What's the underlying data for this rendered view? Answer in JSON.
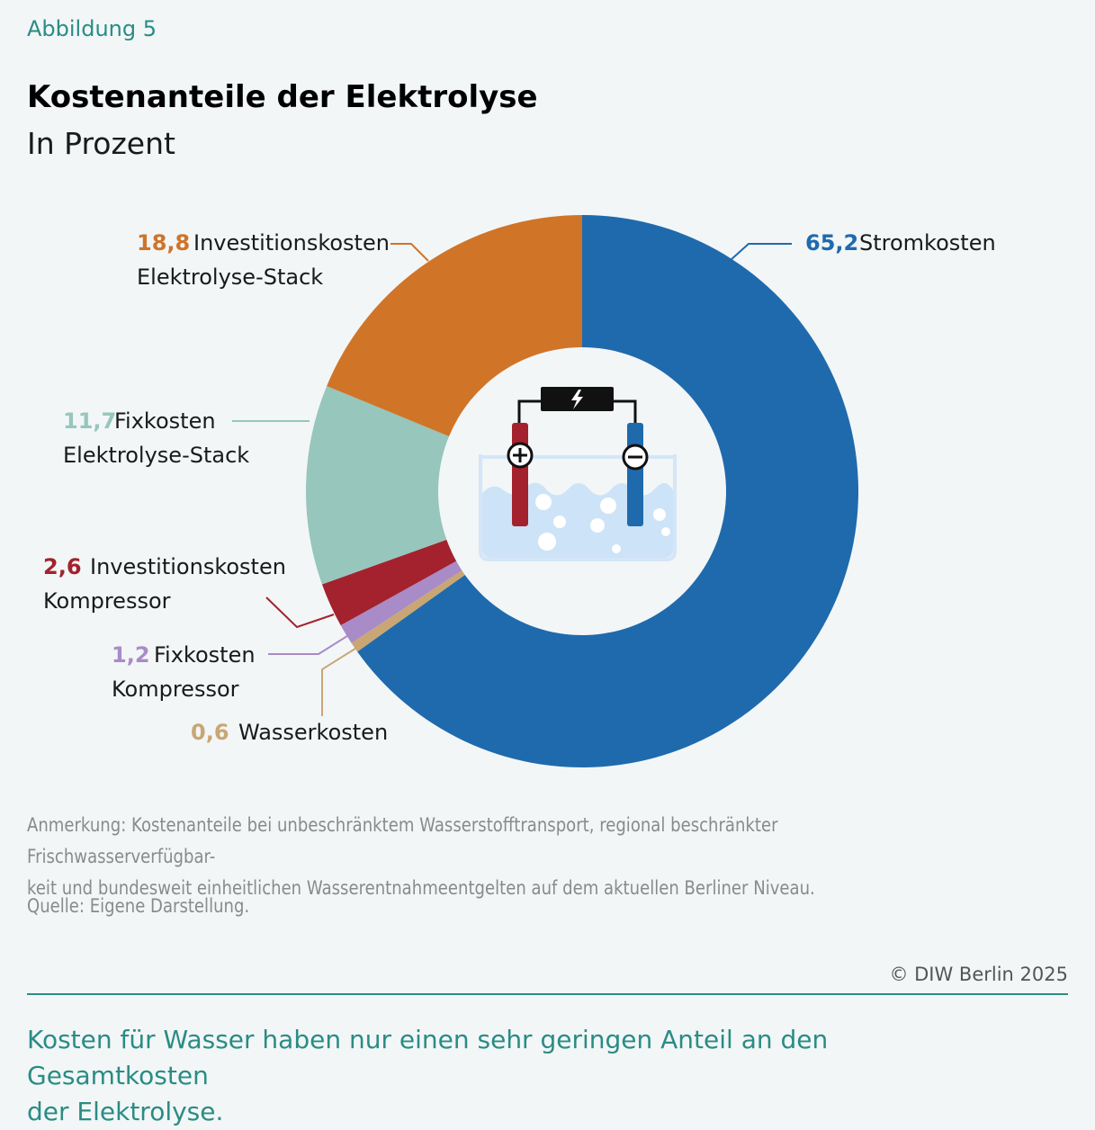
{
  "figure_label": "Abbildung 5",
  "chart_data": {
    "type": "pie",
    "donut": true,
    "title": "Kostenanteile der Elektrolyse",
    "subtitle": "In Prozent",
    "slices": [
      {
        "value": 65.2,
        "value_label": "65,2",
        "label_lines": [
          "Stromkosten"
        ],
        "color": "#1f6aad"
      },
      {
        "value": 0.6,
        "value_label": "0,6",
        "label_lines": [
          "Wasserkosten"
        ],
        "color": "#c9a673"
      },
      {
        "value": 1.2,
        "value_label": "1,2",
        "label_lines": [
          "Fixkosten",
          "Kompressor"
        ],
        "color": "#a98bc7"
      },
      {
        "value": 2.6,
        "value_label": "2,6",
        "label_lines": [
          "Investitionskosten",
          "Kompressor"
        ],
        "color": "#a3222e"
      },
      {
        "value": 11.7,
        "value_label": "11,7",
        "label_lines": [
          "Fixkosten",
          "Elektrolyse-Stack"
        ],
        "color": "#96c6bc"
      },
      {
        "value": 18.8,
        "value_label": "18,8",
        "label_lines": [
          "Investitionskosten",
          "Elektrolyse-Stack"
        ],
        "color": "#d07428"
      }
    ]
  },
  "note": "Anmerkung: Kostenanteile bei unbeschränktem Wasserstofftransport, regional beschränkter Frischwasserverfügbar-keit und bundesweit einheitlichen Wasserentnahmeentgelten auf dem aktuellen Berliner Niveau.",
  "note_line1": "Anmerkung: Kostenanteile bei unbeschränktem Wasserstofftransport, regional beschränkter Frischwasserverfügbar-",
  "note_line2": "keit und bundesweit einheitlichen Wasserentnahmeentgelten auf dem aktuellen Berliner Niveau.",
  "source": "Quelle: Eigene Darstellung.",
  "copyright": "© DIW Berlin 2025",
  "takeaway_line1": "Kosten für Wasser haben nur einen sehr geringen Anteil an den Gesamtkosten",
  "takeaway_line2": "der Elektrolyse.",
  "icon": "electrolysis-cell-icon"
}
